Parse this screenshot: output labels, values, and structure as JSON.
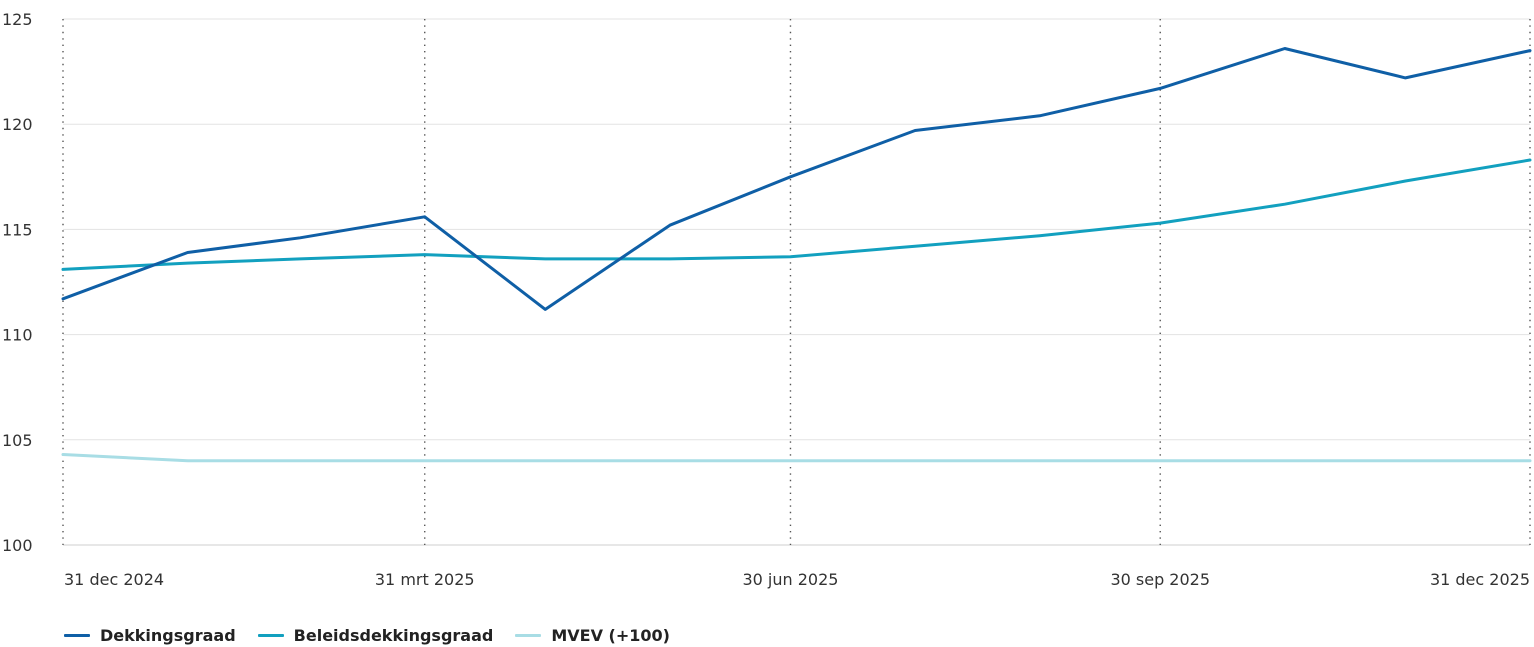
{
  "chart_data": {
    "type": "line",
    "x": [
      "2024-12-31",
      "2025-01-31",
      "2025-02-28",
      "2025-03-31",
      "2025-04-30",
      "2025-05-31",
      "2025-06-30",
      "2025-07-31",
      "2025-08-31",
      "2025-09-30",
      "2025-10-31",
      "2025-11-30",
      "2025-12-31"
    ],
    "x_ticks": [
      {
        "date": "2024-12-31",
        "label": "31 dec 2024"
      },
      {
        "date": "2025-03-31",
        "label": "31 mrt 2025"
      },
      {
        "date": "2025-06-30",
        "label": "30 jun 2025"
      },
      {
        "date": "2025-09-30",
        "label": "30 sep 2025"
      },
      {
        "date": "2025-12-31",
        "label": "31 dec 2025"
      }
    ],
    "y_ticks": [
      100,
      105,
      110,
      115,
      120,
      125
    ],
    "ylim": [
      100,
      125
    ],
    "grid": true,
    "legend_position": "bottom-left",
    "series": [
      {
        "name": "Dekkingsgraad",
        "color": "#0f5fa6",
        "values": [
          111.7,
          113.9,
          114.6,
          115.6,
          111.2,
          115.2,
          117.5,
          119.7,
          120.4,
          121.7,
          123.6,
          122.2,
          123.5
        ]
      },
      {
        "name": "Beleidsdekkingsgraad",
        "color": "#12a0bf",
        "values": [
          113.1,
          113.4,
          113.6,
          113.8,
          113.6,
          113.6,
          113.7,
          114.2,
          114.7,
          115.3,
          116.2,
          117.3,
          118.3
        ]
      },
      {
        "name": "MVEV (+100)",
        "color": "#a8dde5",
        "values": [
          104.3,
          104.0,
          104.0,
          104.0,
          104.0,
          104.0,
          104.0,
          104.0,
          104.0,
          104.0,
          104.0,
          104.0,
          104.0
        ]
      }
    ]
  }
}
